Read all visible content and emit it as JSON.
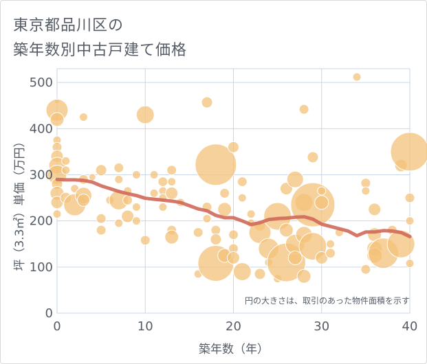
{
  "title_line1": "東京都品川区の",
  "title_line2": "築年数別中古戸建て価格",
  "note": "円の大きさは、取引のあった物件面積を示す",
  "colors": {
    "bubble": "#f3c27a",
    "line": "#d0695a",
    "grid": "#c9d6e6",
    "text": "#555c66"
  },
  "chart_data": {
    "type": "scatter",
    "xlabel": "築年数（年）",
    "ylabel": "坪（3.3㎡）単価（万円）",
    "xlim": [
      0,
      40
    ],
    "ylim": [
      0,
      530
    ],
    "xticks": [
      0,
      10,
      20,
      30,
      40
    ],
    "yticks": [
      0,
      100,
      200,
      300,
      400,
      500
    ],
    "bubbles": [
      {
        "x": 0,
        "y": 460,
        "r": 4
      },
      {
        "x": 0,
        "y": 440,
        "r": 16
      },
      {
        "x": 0,
        "y": 420,
        "r": 10
      },
      {
        "x": 0,
        "y": 375,
        "r": 6
      },
      {
        "x": 0,
        "y": 360,
        "r": 7
      },
      {
        "x": 0,
        "y": 340,
        "r": 9
      },
      {
        "x": 0,
        "y": 320,
        "r": 12
      },
      {
        "x": 0,
        "y": 300,
        "r": 14
      },
      {
        "x": 0,
        "y": 280,
        "r": 8
      },
      {
        "x": 0,
        "y": 260,
        "r": 10
      },
      {
        "x": 0,
        "y": 240,
        "r": 9
      },
      {
        "x": 0,
        "y": 215,
        "r": 6
      },
      {
        "x": 1,
        "y": 330,
        "r": 6
      },
      {
        "x": 1,
        "y": 310,
        "r": 6
      },
      {
        "x": 1,
        "y": 250,
        "r": 8
      },
      {
        "x": 2,
        "y": 235,
        "r": 16
      },
      {
        "x": 2,
        "y": 270,
        "r": 6
      },
      {
        "x": 3,
        "y": 425,
        "r": 6
      },
      {
        "x": 3,
        "y": 290,
        "r": 7
      },
      {
        "x": 3,
        "y": 255,
        "r": 12
      },
      {
        "x": 3,
        "y": 245,
        "r": 9
      },
      {
        "x": 4,
        "y": 295,
        "r": 5
      },
      {
        "x": 5,
        "y": 310,
        "r": 8
      },
      {
        "x": 5,
        "y": 205,
        "r": 7
      },
      {
        "x": 5,
        "y": 180,
        "r": 7
      },
      {
        "x": 6,
        "y": 245,
        "r": 6
      },
      {
        "x": 7,
        "y": 315,
        "r": 7
      },
      {
        "x": 7,
        "y": 290,
        "r": 6
      },
      {
        "x": 7,
        "y": 245,
        "r": 14
      },
      {
        "x": 7,
        "y": 195,
        "r": 6
      },
      {
        "x": 8,
        "y": 265,
        "r": 6
      },
      {
        "x": 8,
        "y": 245,
        "r": 7
      },
      {
        "x": 8,
        "y": 210,
        "r": 9
      },
      {
        "x": 9,
        "y": 300,
        "r": 6
      },
      {
        "x": 9,
        "y": 230,
        "r": 6
      },
      {
        "x": 9,
        "y": 200,
        "r": 6
      },
      {
        "x": 10,
        "y": 430,
        "r": 13
      },
      {
        "x": 10,
        "y": 158,
        "r": 7
      },
      {
        "x": 11,
        "y": 300,
        "r": 6
      },
      {
        "x": 11,
        "y": 260,
        "r": 6
      },
      {
        "x": 12,
        "y": 285,
        "r": 7
      },
      {
        "x": 12,
        "y": 265,
        "r": 6
      },
      {
        "x": 12,
        "y": 250,
        "r": 6
      },
      {
        "x": 12,
        "y": 230,
        "r": 6
      },
      {
        "x": 13,
        "y": 310,
        "r": 7
      },
      {
        "x": 13,
        "y": 285,
        "r": 6
      },
      {
        "x": 13,
        "y": 260,
        "r": 9
      },
      {
        "x": 13,
        "y": 180,
        "r": 7
      },
      {
        "x": 13,
        "y": 165,
        "r": 10
      },
      {
        "x": 14,
        "y": 240,
        "r": 6
      },
      {
        "x": 16,
        "y": 175,
        "r": 7
      },
      {
        "x": 17,
        "y": 457,
        "r": 8
      },
      {
        "x": 17,
        "y": 230,
        "r": 7
      },
      {
        "x": 17,
        "y": 205,
        "r": 6
      },
      {
        "x": 16,
        "y": 85,
        "r": 6
      },
      {
        "x": 18,
        "y": 322,
        "r": 30
      },
      {
        "x": 18,
        "y": 180,
        "r": 7
      },
      {
        "x": 18,
        "y": 160,
        "r": 8
      },
      {
        "x": 18,
        "y": 108,
        "r": 26
      },
      {
        "x": 19,
        "y": 260,
        "r": 7
      },
      {
        "x": 19,
        "y": 225,
        "r": 10
      },
      {
        "x": 19,
        "y": 125,
        "r": 10
      },
      {
        "x": 20,
        "y": 360,
        "r": 8
      },
      {
        "x": 20,
        "y": 170,
        "r": 7
      },
      {
        "x": 20,
        "y": 140,
        "r": 7
      },
      {
        "x": 20,
        "y": 120,
        "r": 9
      },
      {
        "x": 21,
        "y": 285,
        "r": 7
      },
      {
        "x": 21,
        "y": 250,
        "r": 6
      },
      {
        "x": 21,
        "y": 90,
        "r": 13
      },
      {
        "x": 22,
        "y": 215,
        "r": 6
      },
      {
        "x": 22,
        "y": 195,
        "r": 6
      },
      {
        "x": 23,
        "y": 190,
        "r": 8
      },
      {
        "x": 23,
        "y": 175,
        "r": 16
      },
      {
        "x": 23,
        "y": 85,
        "r": 8
      },
      {
        "x": 24,
        "y": 140,
        "r": 15
      },
      {
        "x": 24,
        "y": 110,
        "r": 6
      },
      {
        "x": 25,
        "y": 210,
        "r": 20
      },
      {
        "x": 25,
        "y": 75,
        "r": 6
      },
      {
        "x": 26,
        "y": 270,
        "r": 9
      },
      {
        "x": 26,
        "y": 180,
        "r": 10
      },
      {
        "x": 26,
        "y": 110,
        "r": 28
      },
      {
        "x": 27,
        "y": 290,
        "r": 12
      },
      {
        "x": 27,
        "y": 150,
        "r": 14
      },
      {
        "x": 27,
        "y": 120,
        "r": 10
      },
      {
        "x": 28,
        "y": 442,
        "r": 7
      },
      {
        "x": 28,
        "y": 240,
        "r": 13
      },
      {
        "x": 28,
        "y": 170,
        "r": 12
      },
      {
        "x": 28,
        "y": 80,
        "r": 10
      },
      {
        "x": 29,
        "y": 338,
        "r": 8
      },
      {
        "x": 29,
        "y": 235,
        "r": 32
      },
      {
        "x": 29,
        "y": 145,
        "r": 20
      },
      {
        "x": 30,
        "y": 265,
        "r": 6
      },
      {
        "x": 30,
        "y": 240,
        "r": 10
      },
      {
        "x": 30,
        "y": 120,
        "r": 9
      },
      {
        "x": 31,
        "y": 150,
        "r": 6
      },
      {
        "x": 31,
        "y": 130,
        "r": 7
      },
      {
        "x": 32,
        "y": 175,
        "r": 6
      },
      {
        "x": 34,
        "y": 512,
        "r": 6
      },
      {
        "x": 35,
        "y": 282,
        "r": 7
      },
      {
        "x": 35,
        "y": 265,
        "r": 6
      },
      {
        "x": 35,
        "y": 95,
        "r": 7
      },
      {
        "x": 36,
        "y": 225,
        "r": 9
      },
      {
        "x": 36,
        "y": 170,
        "r": 10
      },
      {
        "x": 36,
        "y": 140,
        "r": 11
      },
      {
        "x": 36,
        "y": 125,
        "r": 11
      },
      {
        "x": 37,
        "y": 130,
        "r": 22
      },
      {
        "x": 38,
        "y": 180,
        "r": 7
      },
      {
        "x": 39,
        "y": 150,
        "r": 20
      },
      {
        "x": 39,
        "y": 320,
        "r": 9
      },
      {
        "x": 40,
        "y": 350,
        "r": 28
      },
      {
        "x": 40,
        "y": 250,
        "r": 7
      },
      {
        "x": 40,
        "y": 200,
        "r": 6
      },
      {
        "x": 40,
        "y": 108,
        "r": 6
      }
    ],
    "trend": {
      "x": [
        0,
        1,
        2,
        3,
        4,
        5,
        6,
        7,
        8,
        9,
        10,
        11,
        12,
        13,
        14,
        15,
        16,
        17,
        18,
        19,
        20,
        21,
        22,
        23,
        24,
        25,
        26,
        27,
        28,
        29,
        30,
        31,
        32,
        33,
        34,
        35,
        36,
        37,
        38,
        39,
        40
      ],
      "y": [
        290,
        289,
        289,
        288,
        284,
        276,
        270,
        264,
        259,
        255,
        249,
        247,
        245,
        243,
        240,
        233,
        226,
        222,
        212,
        207,
        207,
        200,
        192,
        196,
        203,
        205,
        206,
        208,
        209,
        204,
        193,
        188,
        183,
        178,
        168,
        176,
        176,
        179,
        178,
        175,
        166
      ]
    }
  }
}
